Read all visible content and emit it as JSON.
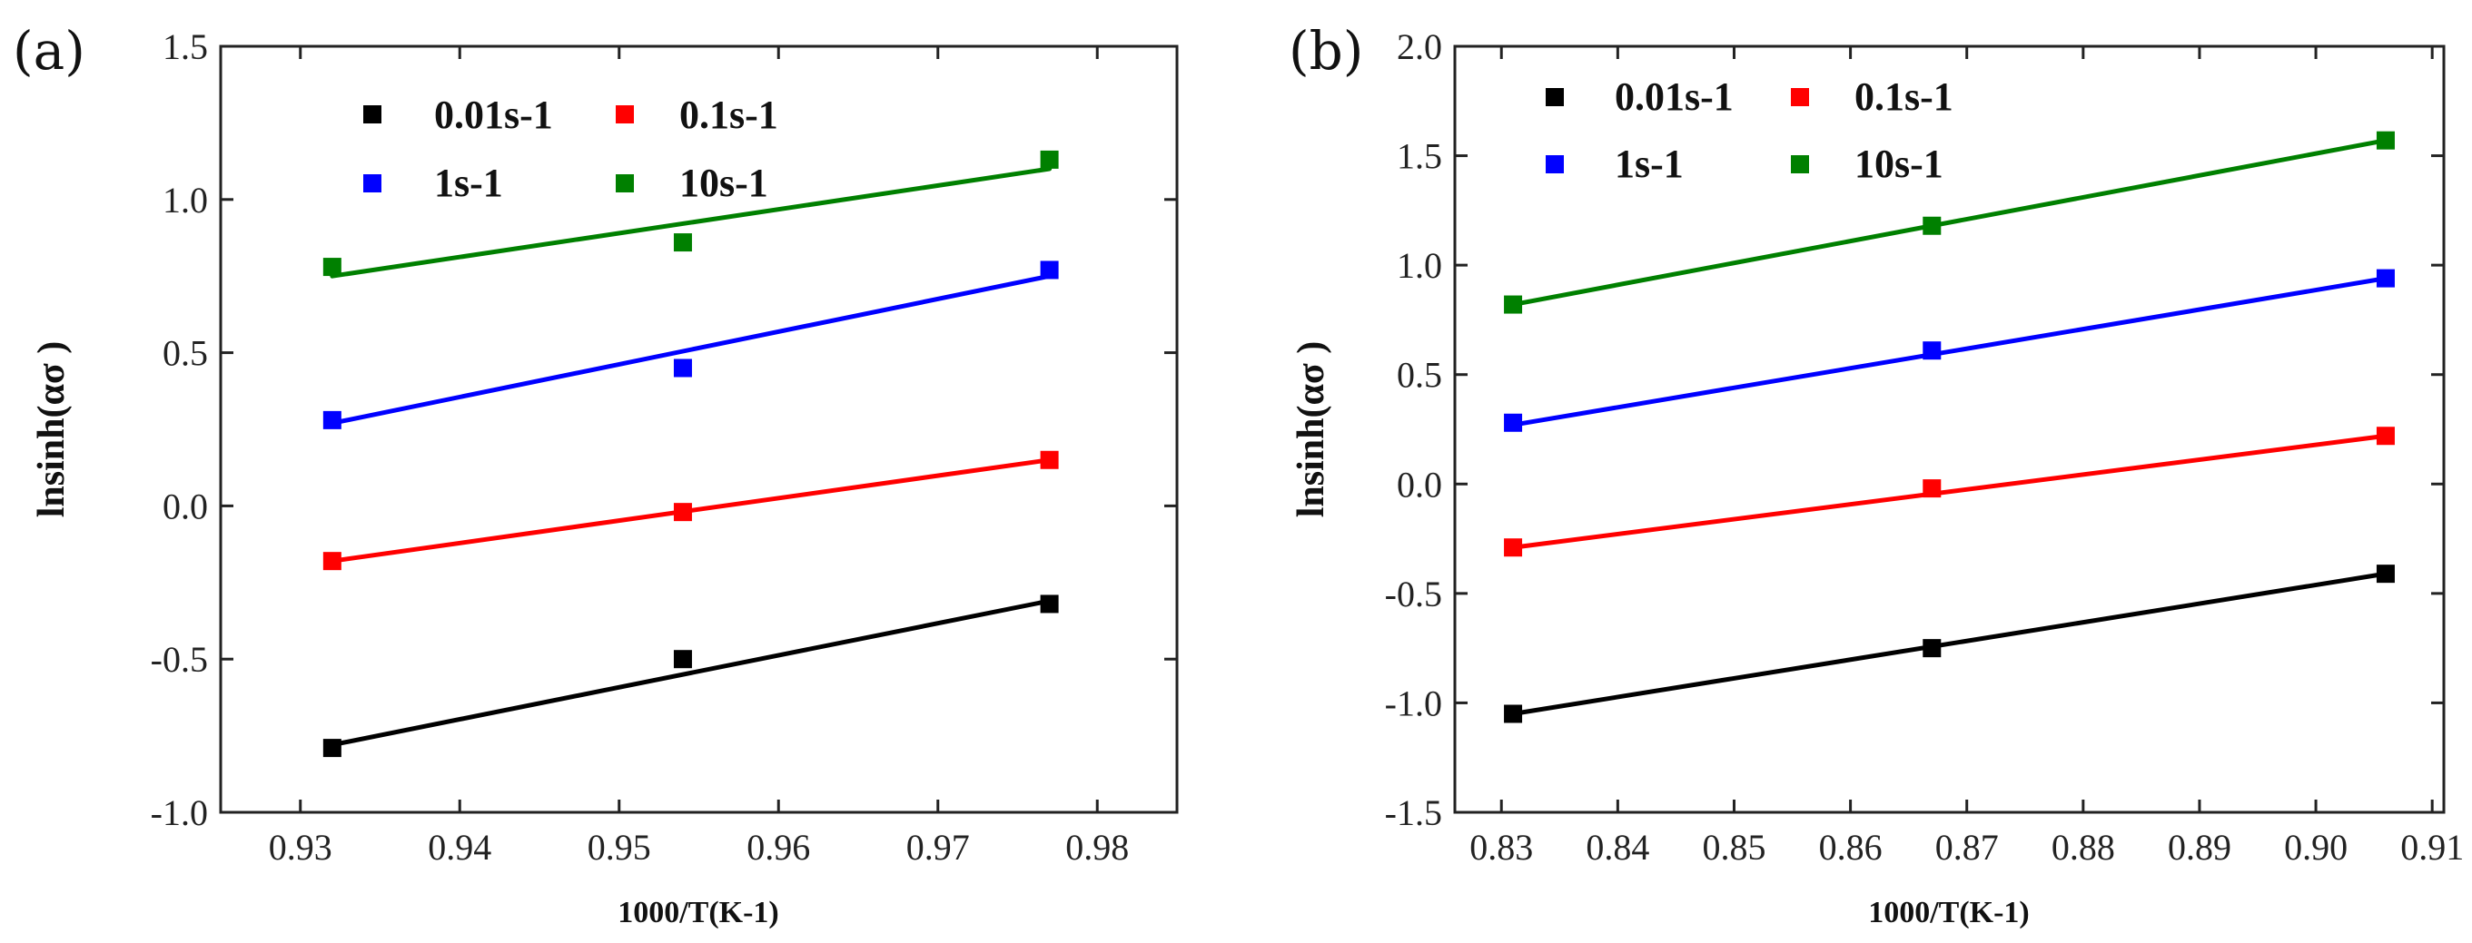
{
  "figure": {
    "panels": [
      "(a)",
      "(b)"
    ],
    "legend_labels": [
      "0.01s-1",
      "0.1s-1",
      "1s-1",
      "10s-1"
    ]
  },
  "chart_data": [
    {
      "type": "scatter",
      "panel_label": "(a)",
      "xlabel": "1000/T(K-1)",
      "ylabel": "lnsinh(ασ )",
      "xlim": [
        0.925,
        0.985
      ],
      "ylim": [
        -1.0,
        1.5
      ],
      "xticks": [
        0.93,
        0.94,
        0.95,
        0.96,
        0.97,
        0.98
      ],
      "yticks": [
        -1.0,
        -0.5,
        0.0,
        0.5,
        1.0,
        1.5
      ],
      "xtick_labels": [
        "0.93",
        "0.94",
        "0.95",
        "0.96",
        "0.97",
        "0.98"
      ],
      "ytick_labels": [
        "-1.0",
        "-0.5",
        "0.0",
        "0.5",
        "1.0",
        "1.5"
      ],
      "x": [
        0.932,
        0.954,
        0.977
      ],
      "series": [
        {
          "name": "0.01s-1",
          "color": "#000000",
          "values": [
            -0.79,
            -0.5,
            -0.32
          ],
          "fit": [
            [
              0.932,
              -0.78
            ],
            [
              0.977,
              -0.31
            ]
          ]
        },
        {
          "name": "0.1s-1",
          "color": "#ff0000",
          "values": [
            -0.18,
            -0.02,
            0.15
          ],
          "fit": [
            [
              0.932,
              -0.18
            ],
            [
              0.977,
              0.15
            ]
          ]
        },
        {
          "name": "1s-1",
          "color": "#0000ff",
          "values": [
            0.28,
            0.45,
            0.77
          ],
          "fit": [
            [
              0.932,
              0.27
            ],
            [
              0.977,
              0.75
            ]
          ]
        },
        {
          "name": "10s-1",
          "color": "#008000",
          "values": [
            0.78,
            0.86,
            1.13
          ],
          "fit": [
            [
              0.932,
              0.75
            ],
            [
              0.977,
              1.1
            ]
          ]
        }
      ]
    },
    {
      "type": "scatter",
      "panel_label": "(b)",
      "xlabel": "1000/T(K-1)",
      "ylabel": "lnsinh(ασ )",
      "xlim": [
        0.826,
        0.911
      ],
      "ylim": [
        -1.5,
        2.0
      ],
      "xticks": [
        0.83,
        0.84,
        0.85,
        0.86,
        0.87,
        0.88,
        0.89,
        0.9,
        0.91
      ],
      "yticks": [
        -1.5,
        -1.0,
        -0.5,
        0.0,
        0.5,
        1.0,
        1.5,
        2.0
      ],
      "xtick_labels": [
        "0.83",
        "0.84",
        "0.85",
        "0.86",
        "0.87",
        "0.88",
        "0.89",
        "0.90",
        "0.91"
      ],
      "ytick_labels": [
        "-1.5",
        "-1.0",
        "-0.5",
        "0.0",
        "0.5",
        "1.0",
        "1.5",
        "2.0"
      ],
      "x": [
        0.831,
        0.867,
        0.906
      ],
      "series": [
        {
          "name": "0.01s-1",
          "color": "#000000",
          "values": [
            -1.05,
            -0.75,
            -0.41
          ],
          "fit": [
            [
              0.831,
              -1.05
            ],
            [
              0.906,
              -0.41
            ]
          ]
        },
        {
          "name": "0.1s-1",
          "color": "#ff0000",
          "values": [
            -0.29,
            -0.02,
            0.22
          ],
          "fit": [
            [
              0.831,
              -0.29
            ],
            [
              0.906,
              0.22
            ]
          ]
        },
        {
          "name": "1s-1",
          "color": "#0000ff",
          "values": [
            0.28,
            0.61,
            0.94
          ],
          "fit": [
            [
              0.831,
              0.27
            ],
            [
              0.906,
              0.94
            ]
          ]
        },
        {
          "name": "10s-1",
          "color": "#008000",
          "values": [
            0.82,
            1.18,
            1.57
          ],
          "fit": [
            [
              0.831,
              0.82
            ],
            [
              0.906,
              1.57
            ]
          ]
        }
      ]
    }
  ]
}
